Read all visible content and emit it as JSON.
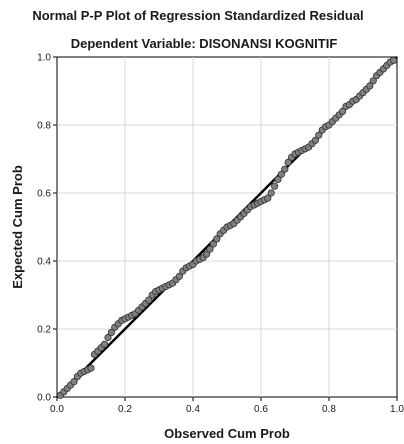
{
  "chart_data": {
    "type": "scatter",
    "title": "Normal P-P Plot of Regression Standardized Residual",
    "subtitle": "Dependent Variable: DISONANSI KOGNITIF",
    "xlabel": "Observed Cum Prob",
    "ylabel": "Expected Cum Prob",
    "xlim": [
      0,
      1
    ],
    "ylim": [
      0,
      1
    ],
    "x_ticks": [
      "0.0",
      "0.2",
      "0.4",
      "0.6",
      "0.8",
      "1.0"
    ],
    "y_ticks": [
      "0.0",
      "0.2",
      "0.4",
      "0.6",
      "0.8",
      "1.0"
    ],
    "grid": true,
    "reference_line": {
      "from": [
        0,
        0
      ],
      "to": [
        1,
        1
      ],
      "color": "#000000"
    },
    "marker_color": "#808080",
    "points": [
      [
        0.01,
        0.005
      ],
      [
        0.02,
        0.015
      ],
      [
        0.03,
        0.025
      ],
      [
        0.04,
        0.035
      ],
      [
        0.05,
        0.045
      ],
      [
        0.06,
        0.06
      ],
      [
        0.07,
        0.07
      ],
      [
        0.08,
        0.075
      ],
      [
        0.09,
        0.08
      ],
      [
        0.1,
        0.085
      ],
      [
        0.11,
        0.125
      ],
      [
        0.12,
        0.135
      ],
      [
        0.13,
        0.145
      ],
      [
        0.14,
        0.155
      ],
      [
        0.15,
        0.175
      ],
      [
        0.16,
        0.19
      ],
      [
        0.17,
        0.205
      ],
      [
        0.18,
        0.215
      ],
      [
        0.19,
        0.225
      ],
      [
        0.2,
        0.23
      ],
      [
        0.21,
        0.235
      ],
      [
        0.22,
        0.24
      ],
      [
        0.23,
        0.245
      ],
      [
        0.24,
        0.255
      ],
      [
        0.25,
        0.265
      ],
      [
        0.26,
        0.275
      ],
      [
        0.27,
        0.285
      ],
      [
        0.28,
        0.3
      ],
      [
        0.29,
        0.31
      ],
      [
        0.3,
        0.315
      ],
      [
        0.31,
        0.32
      ],
      [
        0.32,
        0.325
      ],
      [
        0.33,
        0.33
      ],
      [
        0.34,
        0.335
      ],
      [
        0.35,
        0.345
      ],
      [
        0.36,
        0.355
      ],
      [
        0.37,
        0.37
      ],
      [
        0.38,
        0.38
      ],
      [
        0.39,
        0.385
      ],
      [
        0.4,
        0.39
      ],
      [
        0.41,
        0.4
      ],
      [
        0.42,
        0.405
      ],
      [
        0.43,
        0.41
      ],
      [
        0.44,
        0.42
      ],
      [
        0.45,
        0.435
      ],
      [
        0.46,
        0.45
      ],
      [
        0.47,
        0.465
      ],
      [
        0.48,
        0.48
      ],
      [
        0.49,
        0.49
      ],
      [
        0.5,
        0.5
      ],
      [
        0.51,
        0.505
      ],
      [
        0.52,
        0.51
      ],
      [
        0.53,
        0.52
      ],
      [
        0.54,
        0.53
      ],
      [
        0.55,
        0.54
      ],
      [
        0.56,
        0.55
      ],
      [
        0.57,
        0.56
      ],
      [
        0.58,
        0.565
      ],
      [
        0.59,
        0.57
      ],
      [
        0.6,
        0.575
      ],
      [
        0.61,
        0.58
      ],
      [
        0.62,
        0.585
      ],
      [
        0.63,
        0.6
      ],
      [
        0.64,
        0.62
      ],
      [
        0.65,
        0.64
      ],
      [
        0.66,
        0.655
      ],
      [
        0.67,
        0.67
      ],
      [
        0.68,
        0.69
      ],
      [
        0.69,
        0.705
      ],
      [
        0.7,
        0.715
      ],
      [
        0.71,
        0.72
      ],
      [
        0.72,
        0.725
      ],
      [
        0.73,
        0.73
      ],
      [
        0.74,
        0.735
      ],
      [
        0.75,
        0.745
      ],
      [
        0.76,
        0.755
      ],
      [
        0.77,
        0.77
      ],
      [
        0.78,
        0.785
      ],
      [
        0.79,
        0.795
      ],
      [
        0.8,
        0.8
      ],
      [
        0.81,
        0.81
      ],
      [
        0.82,
        0.82
      ],
      [
        0.83,
        0.83
      ],
      [
        0.84,
        0.84
      ],
      [
        0.85,
        0.855
      ],
      [
        0.86,
        0.86
      ],
      [
        0.87,
        0.87
      ],
      [
        0.88,
        0.875
      ],
      [
        0.89,
        0.885
      ],
      [
        0.9,
        0.895
      ],
      [
        0.91,
        0.905
      ],
      [
        0.92,
        0.915
      ],
      [
        0.93,
        0.93
      ],
      [
        0.94,
        0.945
      ],
      [
        0.95,
        0.955
      ],
      [
        0.96,
        0.965
      ],
      [
        0.97,
        0.975
      ],
      [
        0.98,
        0.985
      ],
      [
        0.99,
        0.99
      ]
    ]
  }
}
